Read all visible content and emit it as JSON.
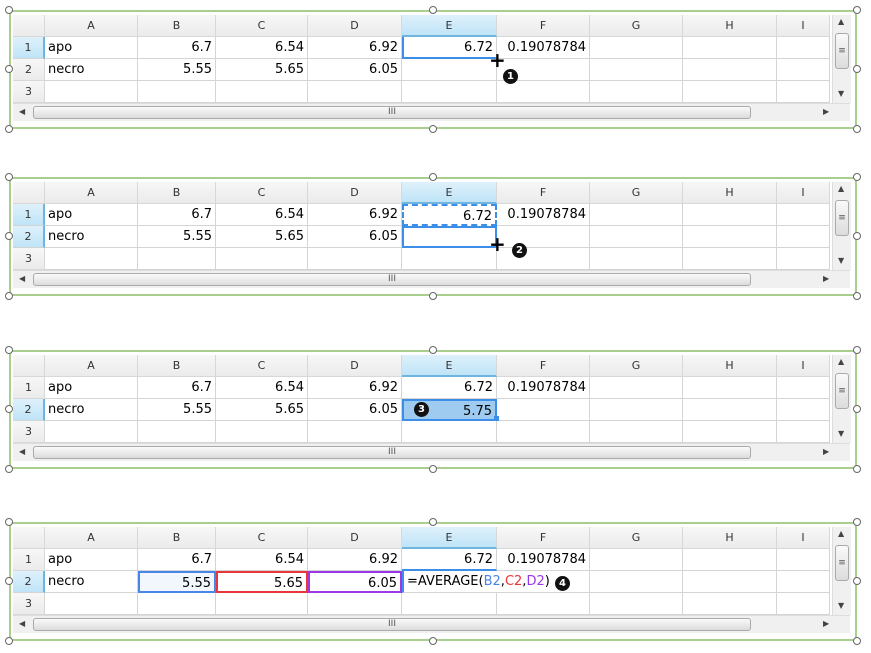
{
  "columns": [
    "A",
    "B",
    "C",
    "D",
    "E",
    "F",
    "G",
    "H",
    "I"
  ],
  "row_numbers": [
    "1",
    "2",
    "3"
  ],
  "rows": [
    [
      "apo",
      "6.7",
      "6.54",
      "6.92",
      "6.72",
      "0.19078784",
      "",
      "",
      ""
    ],
    [
      "necro",
      "5.55",
      "5.65",
      "6.05",
      "",
      "",
      "",
      "",
      ""
    ],
    [
      "",
      "",
      "",
      "",
      "",
      "",
      "",
      "",
      ""
    ]
  ],
  "scroll_grip": "III",
  "steps": [
    {
      "badge": "1",
      "e2_value": ""
    },
    {
      "badge": "2",
      "e2_value": ""
    },
    {
      "badge": "3",
      "e2_value": "5.75"
    },
    {
      "badge": "4",
      "formula": {
        "func": "=AVERAGE(",
        "args": [
          "B2",
          "C2",
          "D2"
        ],
        "sep": ",",
        "close": ")"
      }
    }
  ],
  "colors": {
    "selection": "#3c8ee6",
    "ref_b": "#4a86e8",
    "ref_c": "#e8363b",
    "ref_d": "#9b39e6",
    "frame": "#a9cf8f",
    "fill": "#9fcbf0"
  }
}
